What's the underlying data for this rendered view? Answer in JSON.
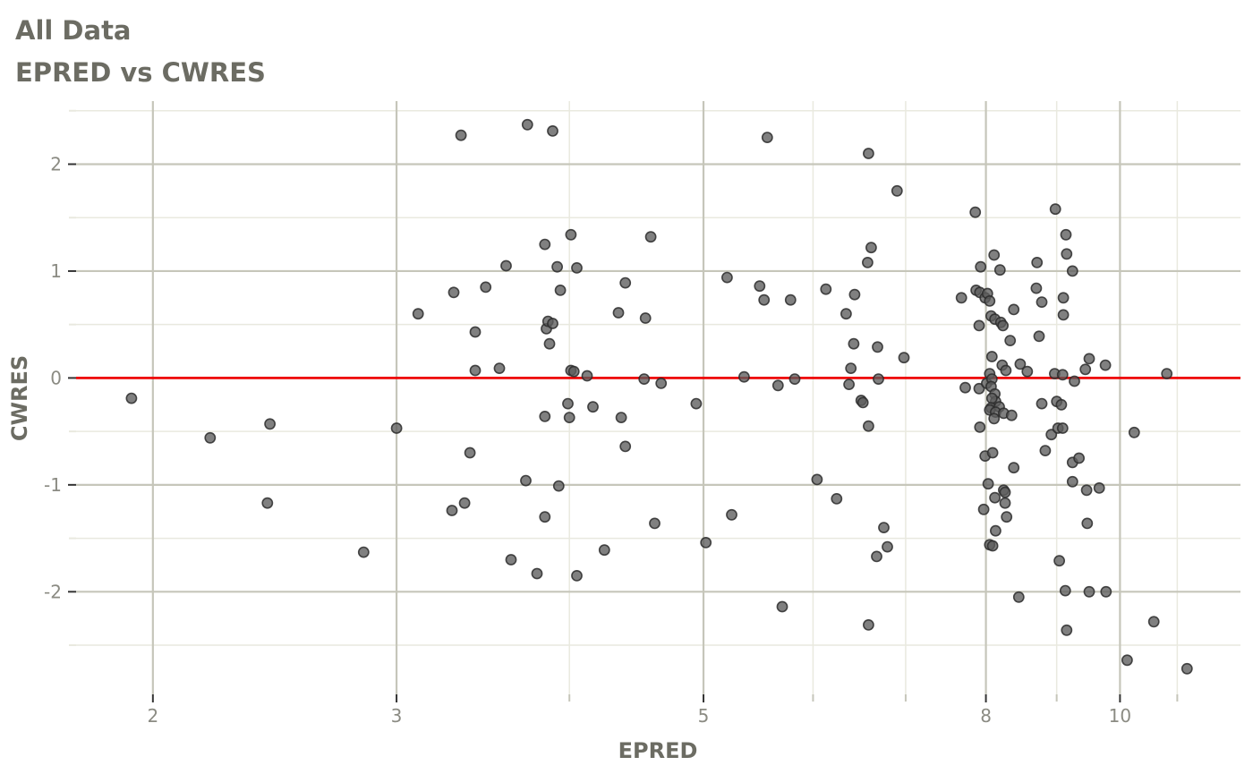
{
  "chart_data": {
    "type": "scatter",
    "title": "All Data",
    "subtitle": "EPRED vs CWRES",
    "xlabel": "EPRED",
    "ylabel": "CWRES",
    "x_scale": "log10",
    "xlim": [
      1.76,
      12.22
    ],
    "ylim": [
      -2.96,
      2.59
    ],
    "grid": true,
    "legend": false,
    "x_ticks_major": [
      2,
      3,
      5,
      8,
      10
    ],
    "x_tick_labels": [
      "2",
      "3",
      "5",
      "8",
      "10"
    ],
    "x_ticks_minor": [
      4,
      6,
      7,
      9,
      11
    ],
    "y_ticks_major": [
      -2,
      -1,
      0,
      1,
      2
    ],
    "y_tick_labels": [
      "-2",
      "-1",
      "0",
      "1",
      "2"
    ],
    "y_ticks_minor": [
      -2.5,
      -1.5,
      -0.5,
      0.5,
      1.5,
      2.5
    ],
    "reference_line_y": 0,
    "points": [
      [
        1.93,
        -0.19
      ],
      [
        2.2,
        -0.56
      ],
      [
        2.42,
        -1.17
      ],
      [
        2.43,
        -0.43
      ],
      [
        2.84,
        -1.63
      ],
      [
        3.0,
        -0.47
      ],
      [
        3.11,
        0.6
      ],
      [
        3.29,
        -1.24
      ],
      [
        3.3,
        0.8
      ],
      [
        3.34,
        2.27
      ],
      [
        3.36,
        -1.17
      ],
      [
        3.39,
        -0.7
      ],
      [
        3.42,
        0.43
      ],
      [
        3.42,
        0.07
      ],
      [
        3.48,
        0.85
      ],
      [
        3.56,
        0.09
      ],
      [
        3.6,
        1.05
      ],
      [
        3.63,
        -1.7
      ],
      [
        3.72,
        -0.96
      ],
      [
        3.73,
        2.37
      ],
      [
        3.79,
        -1.83
      ],
      [
        3.84,
        1.25
      ],
      [
        3.84,
        -0.36
      ],
      [
        3.84,
        -1.3
      ],
      [
        3.85,
        0.46
      ],
      [
        3.86,
        0.53
      ],
      [
        3.87,
        0.32
      ],
      [
        3.89,
        0.51
      ],
      [
        3.89,
        2.31
      ],
      [
        3.92,
        1.04
      ],
      [
        3.93,
        -1.01
      ],
      [
        3.94,
        0.82
      ],
      [
        3.99,
        -0.24
      ],
      [
        4.0,
        -0.37
      ],
      [
        4.01,
        1.34
      ],
      [
        4.01,
        0.07
      ],
      [
        4.03,
        0.06
      ],
      [
        4.05,
        1.03
      ],
      [
        4.05,
        -1.85
      ],
      [
        4.12,
        0.02
      ],
      [
        4.16,
        -0.27
      ],
      [
        4.24,
        -1.61
      ],
      [
        4.34,
        0.61
      ],
      [
        4.36,
        -0.37
      ],
      [
        4.39,
        0.89
      ],
      [
        4.39,
        -0.64
      ],
      [
        4.53,
        -0.01
      ],
      [
        4.54,
        0.56
      ],
      [
        4.58,
        1.32
      ],
      [
        4.61,
        -1.36
      ],
      [
        4.66,
        -0.05
      ],
      [
        4.94,
        -0.24
      ],
      [
        5.02,
        -1.54
      ],
      [
        5.2,
        0.94
      ],
      [
        5.24,
        -1.28
      ],
      [
        5.35,
        0.01
      ],
      [
        5.49,
        0.86
      ],
      [
        5.53,
        0.73
      ],
      [
        5.56,
        2.25
      ],
      [
        5.66,
        -0.07
      ],
      [
        5.7,
        -2.14
      ],
      [
        5.78,
        0.73
      ],
      [
        5.82,
        -0.01
      ],
      [
        6.04,
        -0.95
      ],
      [
        6.13,
        0.83
      ],
      [
        6.24,
        -1.13
      ],
      [
        6.34,
        0.6
      ],
      [
        6.37,
        -0.06
      ],
      [
        6.39,
        0.09
      ],
      [
        6.42,
        0.32
      ],
      [
        6.43,
        0.78
      ],
      [
        6.5,
        -0.21
      ],
      [
        6.52,
        -0.23
      ],
      [
        6.57,
        1.08
      ],
      [
        6.58,
        2.1
      ],
      [
        6.58,
        -0.45
      ],
      [
        6.58,
        -2.31
      ],
      [
        6.61,
        1.22
      ],
      [
        6.67,
        -1.67
      ],
      [
        6.68,
        0.29
      ],
      [
        6.69,
        -0.01
      ],
      [
        6.75,
        -1.4
      ],
      [
        6.79,
        -1.58
      ],
      [
        6.9,
        1.75
      ],
      [
        6.98,
        0.19
      ],
      [
        7.68,
        0.75
      ],
      [
        7.73,
        -0.09
      ],
      [
        7.86,
        1.55
      ],
      [
        7.87,
        0.82
      ],
      [
        7.91,
        0.49
      ],
      [
        7.91,
        -0.1
      ],
      [
        7.92,
        0.8
      ],
      [
        7.92,
        -0.46
      ],
      [
        7.93,
        1.04
      ],
      [
        7.97,
        -1.23
      ],
      [
        7.99,
        0.75
      ],
      [
        7.99,
        -0.73
      ],
      [
        8.02,
        0.79
      ],
      [
        8.05,
        0.72
      ],
      [
        8.03,
        -0.99
      ],
      [
        8.01,
        -0.05
      ],
      [
        8.05,
        0.04
      ],
      [
        8.08,
        -0.01
      ],
      [
        8.07,
        -0.08
      ],
      [
        8.08,
        0.2
      ],
      [
        8.09,
        -0.7
      ],
      [
        8.05,
        -1.56
      ],
      [
        8.09,
        -1.57
      ],
      [
        8.11,
        1.15
      ],
      [
        8.12,
        -0.15
      ],
      [
        8.07,
        0.58
      ],
      [
        8.12,
        0.55
      ],
      [
        8.13,
        -0.22
      ],
      [
        8.08,
        -0.19
      ],
      [
        8.07,
        -0.28
      ],
      [
        8.18,
        -0.27
      ],
      [
        8.05,
        -0.3
      ],
      [
        8.13,
        -0.32
      ],
      [
        8.24,
        -0.33
      ],
      [
        8.35,
        -0.35
      ],
      [
        8.11,
        -0.38
      ],
      [
        8.12,
        -1.12
      ],
      [
        8.13,
        -1.43
      ],
      [
        8.19,
        1.01
      ],
      [
        8.2,
        0.52
      ],
      [
        8.23,
        0.49
      ],
      [
        8.22,
        0.12
      ],
      [
        8.27,
        0.07
      ],
      [
        8.24,
        -1.05
      ],
      [
        8.26,
        -1.07
      ],
      [
        8.26,
        -1.17
      ],
      [
        8.28,
        -1.3
      ],
      [
        8.33,
        0.35
      ],
      [
        8.38,
        0.64
      ],
      [
        8.38,
        -0.84
      ],
      [
        8.45,
        -2.05
      ],
      [
        8.47,
        0.13
      ],
      [
        8.57,
        0.06
      ],
      [
        8.7,
        0.84
      ],
      [
        8.71,
        1.08
      ],
      [
        8.74,
        0.39
      ],
      [
        8.78,
        0.71
      ],
      [
        8.78,
        -0.24
      ],
      [
        8.83,
        -0.68
      ],
      [
        8.92,
        -0.53
      ],
      [
        8.97,
        0.04
      ],
      [
        8.98,
        1.58
      ],
      [
        9.0,
        -0.22
      ],
      [
        9.02,
        -0.47
      ],
      [
        9.04,
        -1.71
      ],
      [
        9.07,
        -0.25
      ],
      [
        9.09,
        -0.47
      ],
      [
        9.09,
        0.03
      ],
      [
        9.1,
        0.75
      ],
      [
        9.1,
        0.59
      ],
      [
        9.13,
        -1.99
      ],
      [
        9.14,
        1.34
      ],
      [
        9.15,
        1.16
      ],
      [
        9.15,
        -2.36
      ],
      [
        9.24,
        1.0
      ],
      [
        9.24,
        -0.79
      ],
      [
        9.24,
        -0.97
      ],
      [
        9.27,
        -0.03
      ],
      [
        9.34,
        -0.75
      ],
      [
        9.44,
        0.08
      ],
      [
        9.46,
        -1.05
      ],
      [
        9.47,
        -1.36
      ],
      [
        9.5,
        0.18
      ],
      [
        9.5,
        -2.0
      ],
      [
        9.66,
        -1.03
      ],
      [
        9.76,
        0.12
      ],
      [
        9.77,
        -2.0
      ],
      [
        10.12,
        -2.64
      ],
      [
        10.24,
        -0.51
      ],
      [
        10.58,
        -2.28
      ],
      [
        10.81,
        0.04
      ],
      [
        11.18,
        -2.72
      ]
    ]
  },
  "colors": {
    "background": "#ffffff",
    "grid_major": "#c6c6ba",
    "grid_minor": "#e9e9df",
    "reference_line": "#ee0000",
    "point_fill": "#5c5c5c",
    "point_stroke": "#2b2b2b",
    "title_text": "#6c6c63",
    "tick_text": "#8b8b83",
    "tick_mark": "#333333"
  }
}
